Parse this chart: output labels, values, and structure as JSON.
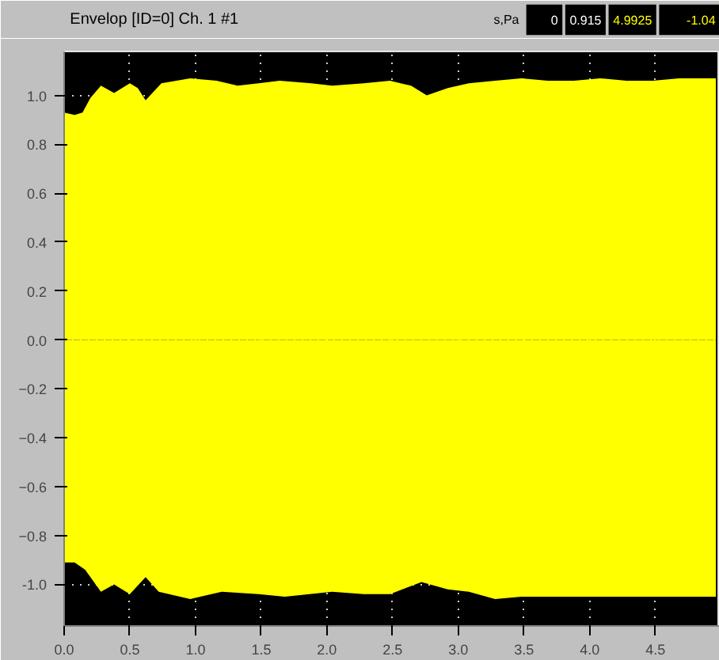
{
  "chart_data": {
    "type": "area",
    "title": "Envelop [ID=0]  Ch. 1 #1",
    "annotations": [
      "s,Pa",
      "0",
      "0.915",
      "4.9925",
      "-1.04"
    ],
    "series": [
      {
        "color": "#ffff00",
        "x": [
          0,
          0.08,
          0.14,
          0.2,
          0.28,
          0.38,
          0.5,
          0.56,
          0.62,
          0.74,
          0.96,
          1.16,
          1.32,
          1.48,
          1.64,
          1.88,
          2.04,
          2.28,
          2.48,
          2.64,
          2.76,
          2.92,
          3.08,
          3.28,
          3.48,
          3.68,
          3.88,
          4.08,
          4.28,
          4.48,
          4.68,
          4.96
        ],
        "values": [
          0.93,
          0.92,
          0.93,
          0.99,
          1.04,
          1.01,
          1.05,
          1.03,
          0.98,
          1.05,
          1.07,
          1.06,
          1.04,
          1.05,
          1.06,
          1.05,
          1.04,
          1.05,
          1.06,
          1.04,
          1.0,
          1.03,
          1.05,
          1.06,
          1.07,
          1.06,
          1.06,
          1.07,
          1.06,
          1.06,
          1.07,
          1.07
        ]
      },
      {
        "color": "#ffff00",
        "x": [
          0,
          0.08,
          0.16,
          0.28,
          0.38,
          0.5,
          0.62,
          0.72,
          0.96,
          1.2,
          1.48,
          1.68,
          2.04,
          2.28,
          2.48,
          2.72,
          2.92,
          3.08,
          3.28,
          3.48,
          3.88,
          4.28,
          4.68,
          4.96
        ],
        "values": [
          -0.91,
          -0.91,
          -0.94,
          -1.03,
          -1.0,
          -1.04,
          -0.97,
          -1.03,
          -1.06,
          -1.03,
          -1.04,
          -1.05,
          -1.03,
          -1.04,
          -1.04,
          -0.99,
          -1.02,
          -1.03,
          -1.06,
          -1.05,
          -1.05,
          -1.05,
          -1.05,
          -1.05
        ]
      }
    ],
    "xlim": [
      0,
      4.99
    ],
    "ylim": [
      -1.17,
      1.18
    ],
    "xticks": [
      {
        "value": 0,
        "label": "0.0"
      },
      0.5,
      {
        "value": 1,
        "label": "1.0"
      },
      1.5,
      {
        "value": 2,
        "label": "2.0"
      },
      2.5,
      {
        "value": 3,
        "label": "3.0"
      },
      3.5,
      {
        "value": 4,
        "label": "4.0"
      },
      4.5
    ],
    "yticks": [
      {
        "value": -1,
        "label": "-1.0"
      },
      -0.8,
      -0.6,
      -0.4,
      -0.2,
      {
        "value": 0,
        "label": "0.0"
      },
      0.2,
      0.4,
      0.6,
      0.8,
      {
        "value": 1,
        "label": "1.0"
      }
    ],
    "grid": true
  }
}
